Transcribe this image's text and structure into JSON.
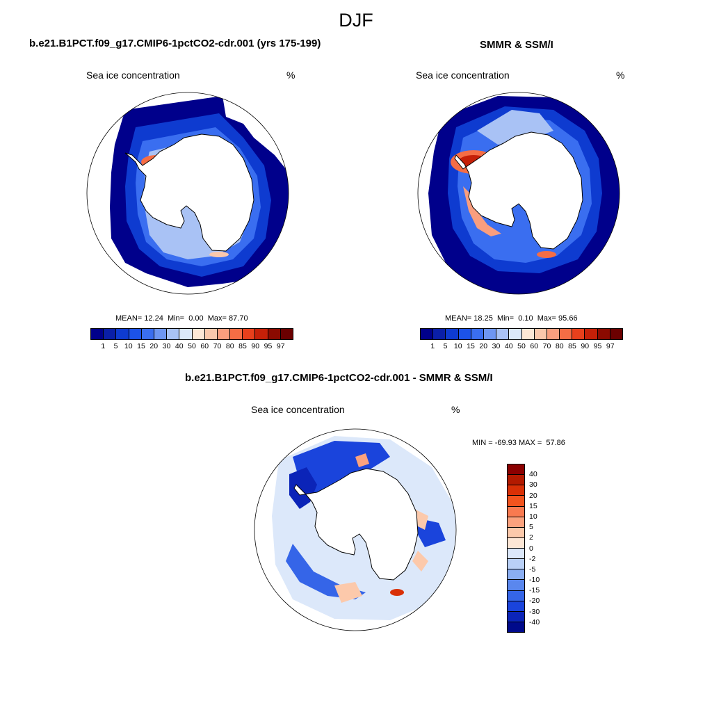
{
  "figure": {
    "title": "DJF"
  },
  "panels": [
    {
      "title": "b.e21.B1PCT.f09_g17.CMIP6-1pctCO2-cdr.001 (yrs 175-199)",
      "left_label": "Sea ice concentration",
      "right_label": "%",
      "mean_label": "MEAN=",
      "mean": "12.24",
      "min_label": "Min=",
      "min": "0.00",
      "max_label": "Max=",
      "max": "87.70"
    },
    {
      "title": "SMMR & SSM/I",
      "left_label": "Sea ice concentration",
      "right_label": "%",
      "mean_label": "MEAN=",
      "mean": "18.25",
      "min_label": "Min=",
      "min": "0.10",
      "max_label": "Max=",
      "max": "95.66"
    }
  ],
  "diff_panel": {
    "title": "b.e21.B1PCT.f09_g17.CMIP6-1pctCO2-cdr.001 - SMMR & SSM/I",
    "left_label": "Sea ice concentration",
    "right_label": "%",
    "minmax": "MIN = -69.93 MAX =  57.86"
  },
  "colorbar_conc": {
    "levels": [
      "1",
      "5",
      "10",
      "15",
      "20",
      "30",
      "40",
      "50",
      "60",
      "70",
      "80",
      "85",
      "90",
      "95",
      "97"
    ],
    "colors": [
      "#00008b",
      "#0a1fa8",
      "#0e3bd0",
      "#1c52e8",
      "#3a6ef0",
      "#6e96f2",
      "#a9c2f5",
      "#dce8fa",
      "#fde7d6",
      "#fbc8ac",
      "#f99e7e",
      "#f56d45",
      "#e8401c",
      "#c52008",
      "#8b0a00",
      "#6b0000"
    ]
  },
  "colorbar_diff": {
    "levels": [
      "40",
      "30",
      "20",
      "15",
      "10",
      "5",
      "2",
      "0",
      "-2",
      "-5",
      "-10",
      "-15",
      "-20",
      "-30",
      "-40"
    ],
    "colors": [
      "#8b0000",
      "#b31a00",
      "#d93006",
      "#f2541e",
      "#f97a50",
      "#fba27e",
      "#fcc9ab",
      "#fde7d6",
      "#dce8fa",
      "#b9d0f7",
      "#8aaef2",
      "#5a87ee",
      "#3565e8",
      "#1a44dc",
      "#0b24b8",
      "#000a8b"
    ]
  }
}
